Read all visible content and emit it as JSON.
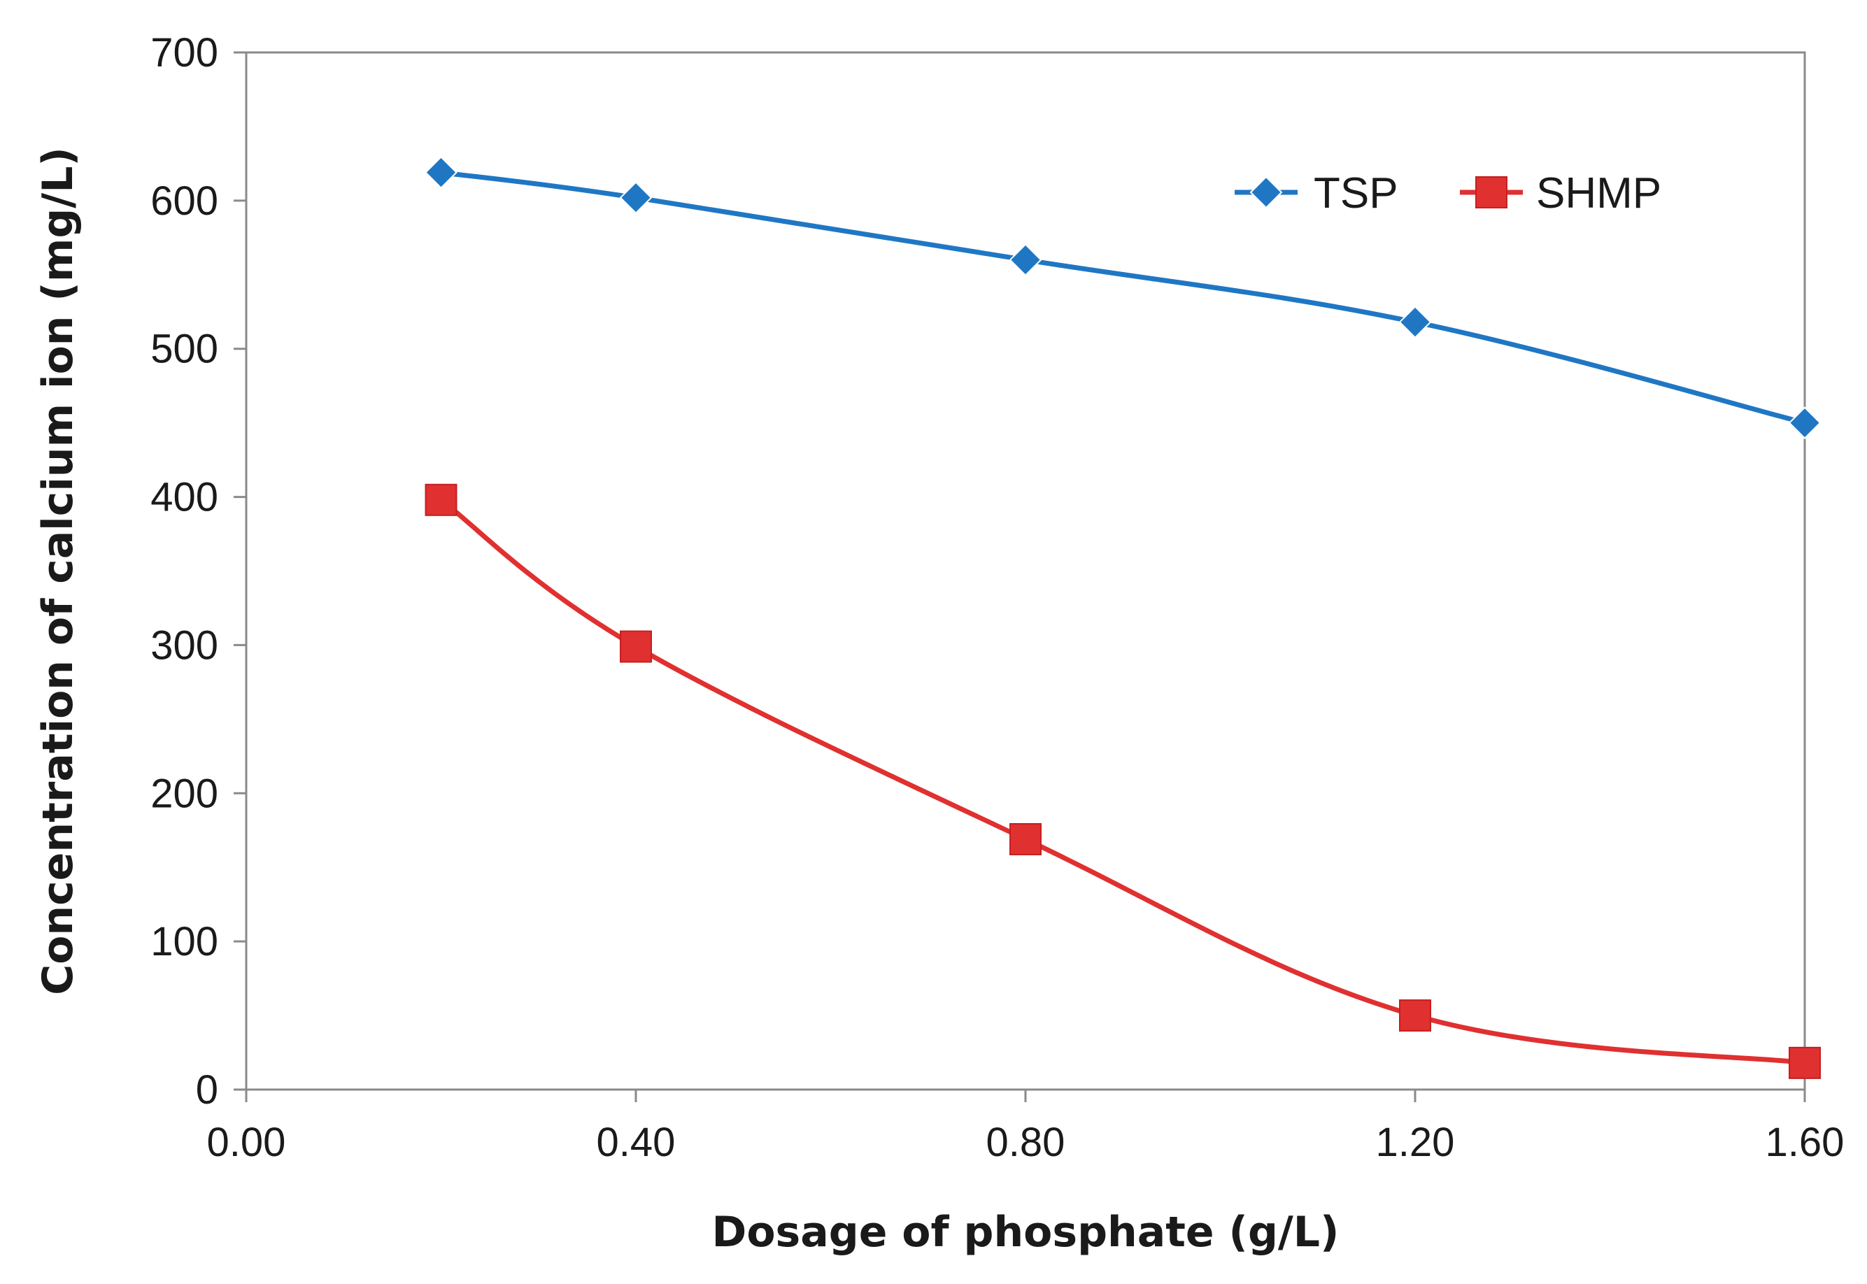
{
  "chart_data": {
    "type": "line",
    "title": "",
    "xlabel": "Dosage of phosphate (g/L)",
    "ylabel": "Concentration of calcium ion (mg/L)",
    "xlim": [
      0,
      1.6
    ],
    "ylim": [
      0,
      700
    ],
    "xticks": [
      0,
      0.4,
      0.8,
      1.2,
      1.6
    ],
    "xtick_labels": [
      "0.00",
      "0.40",
      "0.80",
      "1.20",
      "1.60"
    ],
    "yticks": [
      0,
      100,
      200,
      300,
      400,
      500,
      600,
      700
    ],
    "ytick_labels": [
      "0",
      "100",
      "200",
      "300",
      "400",
      "500",
      "600",
      "700"
    ],
    "grid": false,
    "legend_position": "top-right",
    "series": [
      {
        "name": "TSP",
        "color": "#1f77c4",
        "marker": "diamond",
        "x": [
          0.2,
          0.4,
          0.8,
          1.2,
          1.6
        ],
        "values": [
          619,
          602,
          560,
          518,
          450
        ]
      },
      {
        "name": "SHMP",
        "color": "#e03030",
        "marker": "square",
        "x": [
          0.2,
          0.4,
          0.8,
          1.2,
          1.6
        ],
        "values": [
          398,
          299,
          169,
          50,
          18
        ]
      }
    ]
  }
}
